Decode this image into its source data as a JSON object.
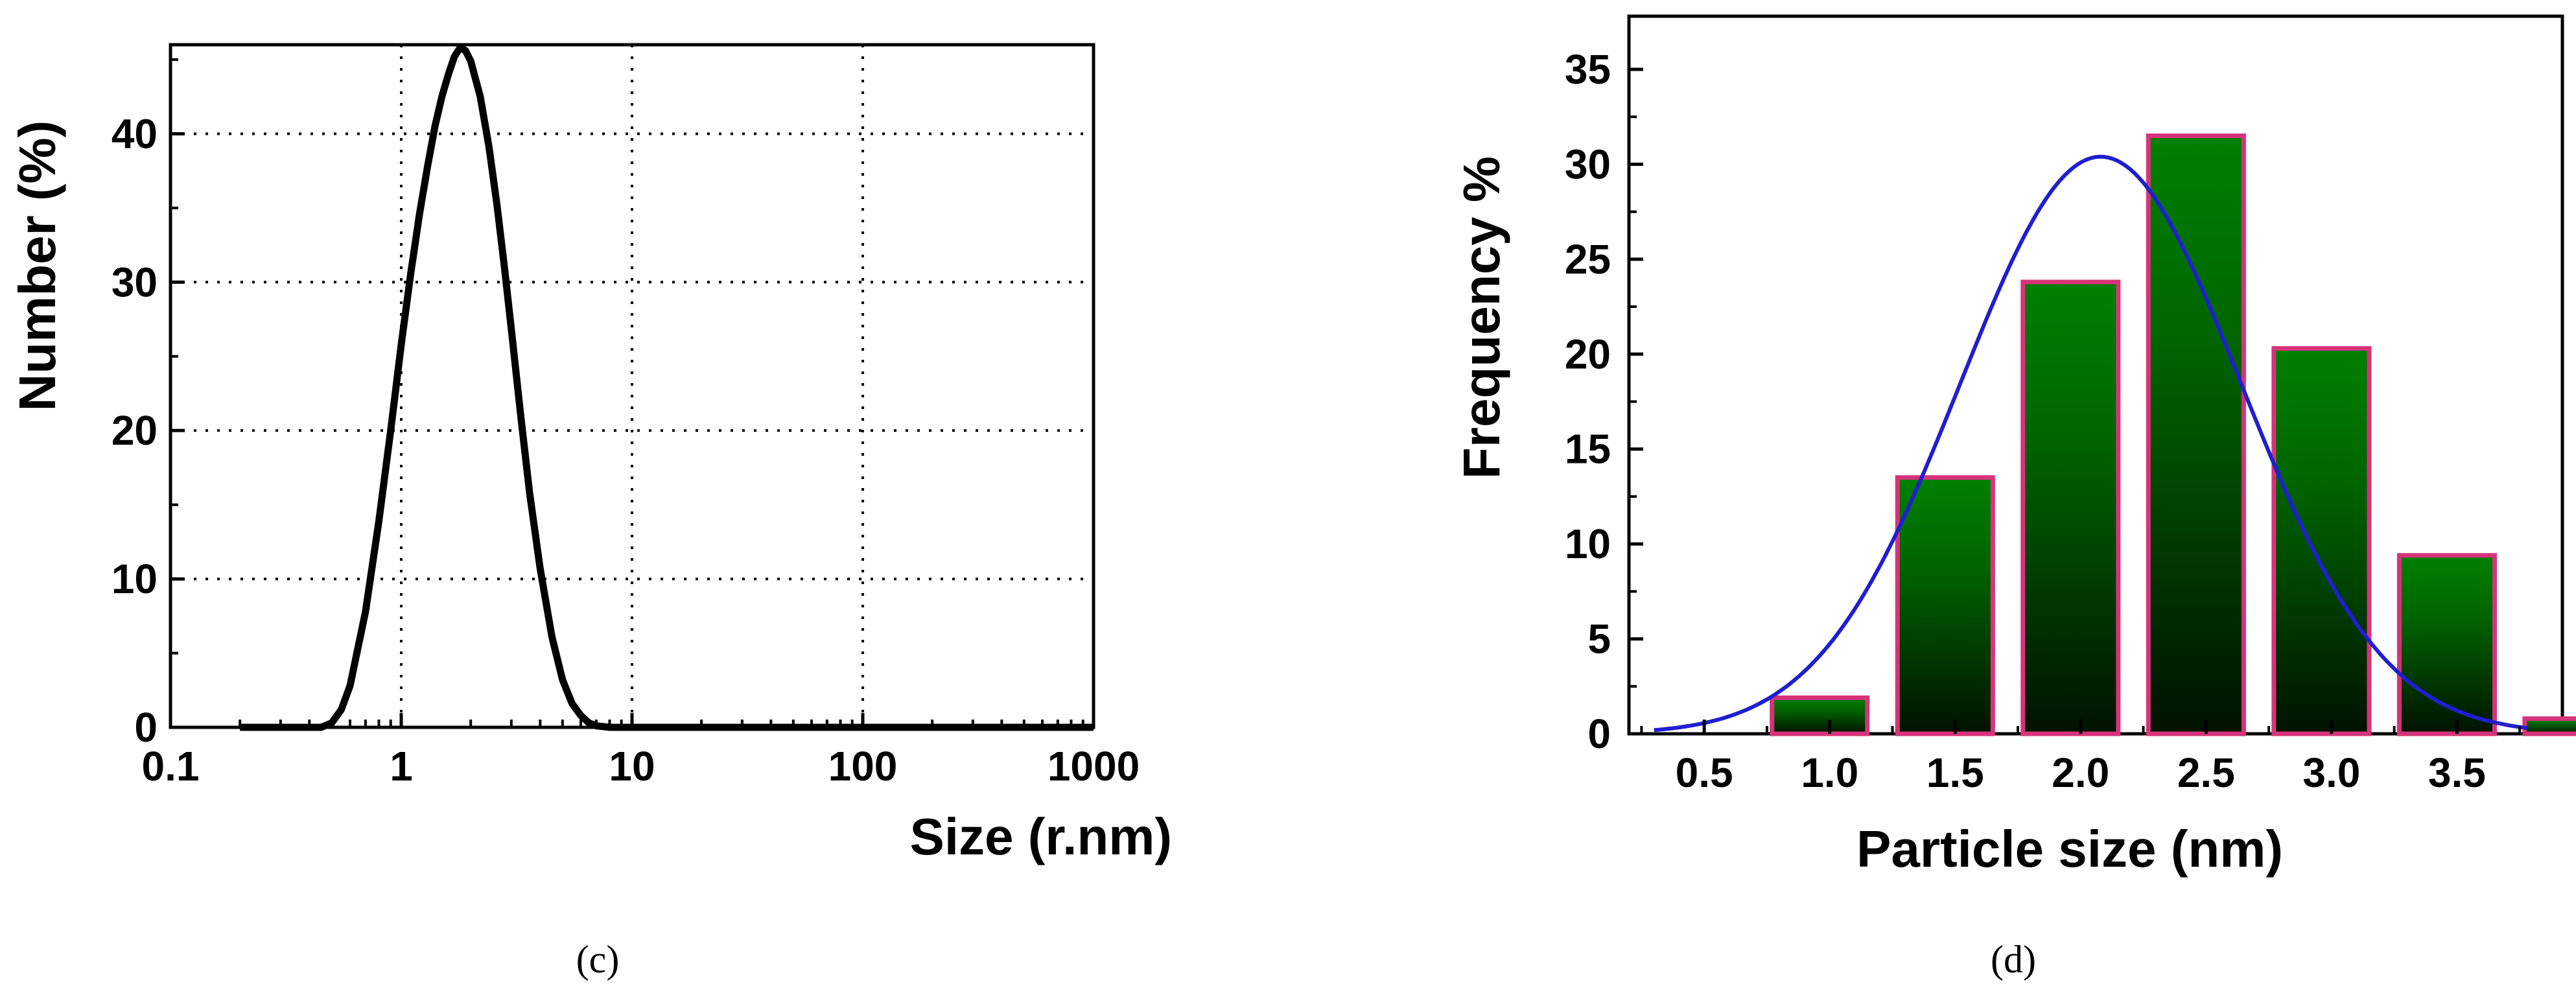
{
  "chart_data": [
    {
      "type": "line",
      "panel": "(c)",
      "xlabel": "Size (r.nm)",
      "ylabel": "Number (%)",
      "x_scale": "log",
      "xlim": [
        0.1,
        1000
      ],
      "ylim": [
        0,
        46
      ],
      "x_ticks": [
        0.1,
        1,
        10,
        100,
        1000
      ],
      "x_tick_labels": [
        "0.1",
        "1",
        "10",
        "100",
        "1000"
      ],
      "y_ticks": [
        0,
        10,
        20,
        30,
        40
      ],
      "y_tick_labels": [
        "0",
        "10",
        "20",
        "30",
        "40"
      ],
      "grid": "dotted",
      "line_color": "#000000",
      "series": [
        {
          "x": [
            0.2,
            0.3,
            0.4,
            0.45,
            0.5,
            0.55,
            0.6,
            0.7,
            0.8,
            0.9,
            1.0,
            1.1,
            1.2,
            1.3,
            1.4,
            1.5,
            1.6,
            1.7,
            1.8,
            1.9,
            2.0,
            2.2,
            2.4,
            2.6,
            2.8,
            3.0,
            3.3,
            3.6,
            4.0,
            4.5,
            5.0,
            5.5,
            6.0,
            6.5,
            7.0,
            8.0,
            10,
            20,
            50,
            100,
            300,
            1000
          ],
          "y": [
            0,
            0,
            0,
            0,
            0.3,
            1.2,
            2.8,
            7.8,
            13.9,
            20.0,
            25.8,
            30.6,
            34.6,
            37.8,
            40.5,
            42.5,
            44.0,
            45.2,
            45.8,
            45.6,
            44.9,
            42.5,
            39.1,
            35.2,
            31.0,
            26.8,
            20.9,
            15.8,
            10.7,
            6.1,
            3.2,
            1.6,
            0.8,
            0.3,
            0.1,
            0,
            0,
            0,
            0,
            0,
            0,
            0
          ]
        }
      ]
    },
    {
      "type": "bar",
      "panel": "(d)",
      "xlabel": "Particle size (nm)",
      "ylabel": "Frequency %",
      "xlim": [
        0.2,
        3.92
      ],
      "ylim": [
        0,
        35
      ],
      "x_ticks": [
        0.5,
        1.0,
        1.5,
        2.0,
        2.5,
        3.0,
        3.5
      ],
      "x_tick_labels": [
        "0.5",
        "1.0",
        "1.5",
        "2.0",
        "2.5",
        "3.0",
        "3.5"
      ],
      "y_ticks": [
        0,
        5,
        10,
        15,
        20,
        25,
        30,
        35
      ],
      "y_tick_labels": [
        "0",
        "5",
        "10",
        "15",
        "20",
        "25",
        "30",
        "35"
      ],
      "bar_width": 0.38,
      "bins": [
        0.95,
        1.45,
        1.95,
        2.45,
        2.95,
        3.45,
        3.95
      ],
      "x": [
        0.96,
        1.46,
        1.96,
        2.46,
        2.96,
        3.46,
        3.96
      ],
      "values": [
        1.9,
        13.5,
        23.8,
        31.5,
        20.3,
        9.4,
        0.8
      ],
      "bar_fill_top": "#008000",
      "bar_fill_bottom": "#001000",
      "bar_edge": "#d6337a",
      "fit": {
        "type": "gaussian",
        "color": "#1f1fd0",
        "mean": 2.08,
        "sd": 0.56,
        "peak": 30.4
      }
    }
  ]
}
